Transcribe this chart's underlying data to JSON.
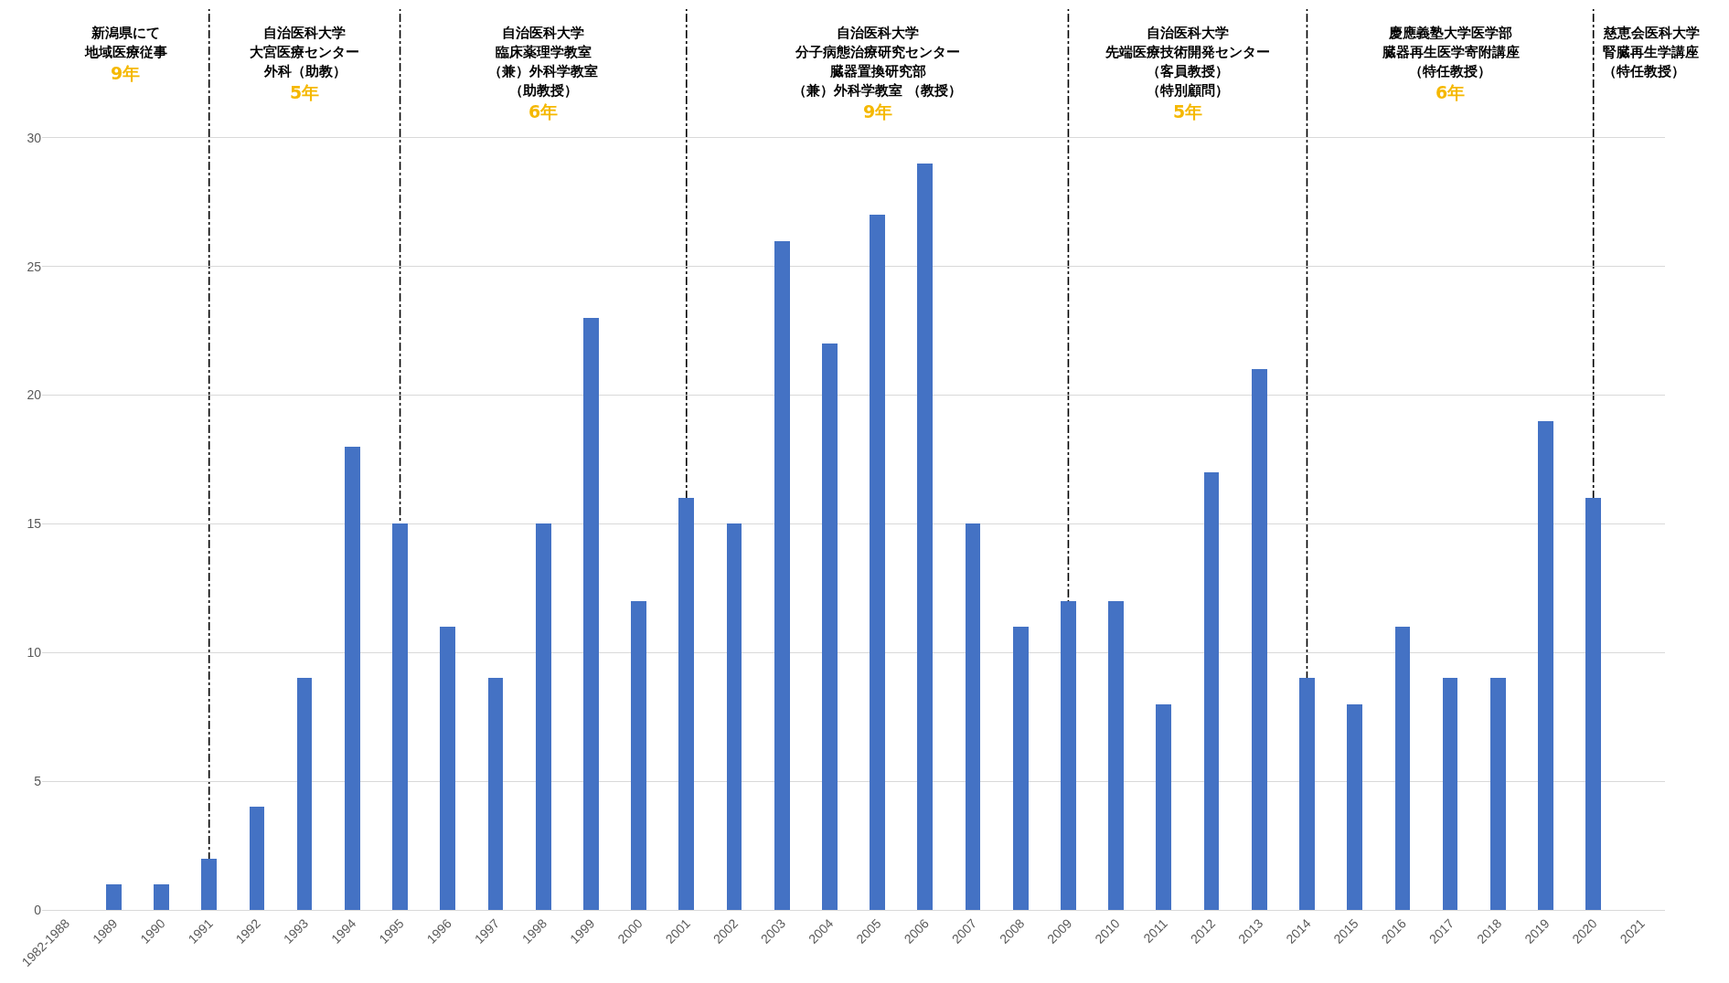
{
  "chart_data": {
    "type": "bar",
    "categories": [
      "1982-1988",
      "1989",
      "1990",
      "1991",
      "1992",
      "1993",
      "1994",
      "1995",
      "1996",
      "1997",
      "1998",
      "1999",
      "2000",
      "2001",
      "2002",
      "2003",
      "2004",
      "2005",
      "2006",
      "2007",
      "2008",
      "2009",
      "2010",
      "2011",
      "2012",
      "2013",
      "2014",
      "2015",
      "2016",
      "2017",
      "2018",
      "2019",
      "2020",
      "2021"
    ],
    "values": [
      0,
      1,
      1,
      2,
      4,
      9,
      18,
      15,
      11,
      9,
      15,
      23,
      12,
      16,
      15,
      26,
      22,
      27,
      29,
      15,
      11,
      12,
      12,
      8,
      17,
      21,
      9,
      8,
      11,
      9,
      9,
      19,
      16,
      0
    ],
    "color": "#4472c4",
    "ylim": [
      0,
      35
    ],
    "yticks": [
      0,
      5,
      10,
      15,
      20,
      25,
      30
    ],
    "grid": "y",
    "ref_lines": [
      {
        "axis": "x",
        "value": "1991",
        "line_style": "dashdot",
        "color": "#000000"
      },
      {
        "axis": "x",
        "value": "1995",
        "line_style": "dashdot",
        "color": "#000000"
      },
      {
        "axis": "x",
        "value": "2001",
        "line_style": "dashdot",
        "color": "#000000"
      },
      {
        "axis": "x",
        "value": "2009",
        "line_style": "dashdot",
        "color": "#000000"
      },
      {
        "axis": "x",
        "value": "2014",
        "line_style": "dashdot",
        "color": "#000000"
      },
      {
        "axis": "x",
        "value": "2020",
        "line_style": "dashdot",
        "color": "#000000"
      }
    ],
    "annotations": [
      "新潟県にて",
      "地域医療従事",
      "9年",
      "自治医科大学",
      "大宮医療センター",
      "外科（助教）",
      "5年",
      "自治医科大学",
      "臨床薬理学教室",
      "（兼）外科学教室",
      "（助教授）",
      "6年",
      "自治医科大学",
      "分子病態治療研究センター",
      "臓器置換研究部",
      "（兼）外科学教室 （教授）",
      "9年",
      "自治医科大学",
      "先端医療技術開発センター",
      "（客員教授）",
      "（特別顧問）",
      "5年",
      "慶應義塾大学医学部",
      "臓器再生医学寄附講座",
      "（特任教授）",
      "6年",
      "慈恵会医科大学",
      "腎臓再生学講座",
      "（特任教授）"
    ]
  }
}
